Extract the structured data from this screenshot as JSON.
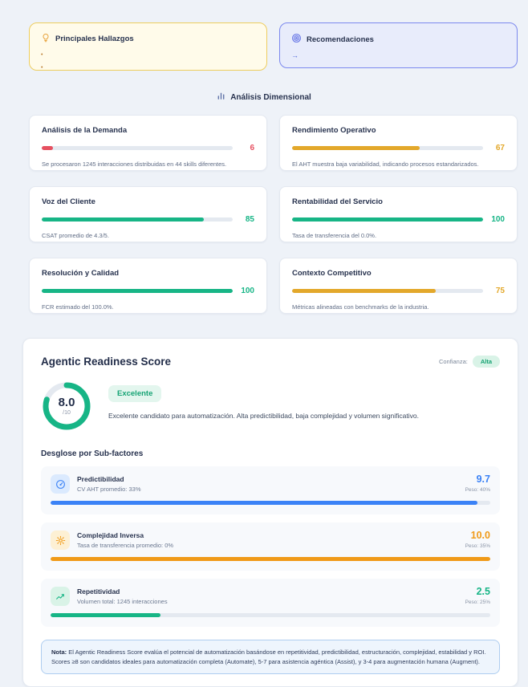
{
  "colors": {
    "page_bg": "#eef2f8",
    "red": "#e65060",
    "gold": "#e3a82b",
    "green": "#17b586",
    "blue": "#3b82f6",
    "orange": "#f09a18",
    "findings_border": "#edcd5f",
    "reco_border": "#7b88ee"
  },
  "findings": {
    "icon": "lightbulb-icon",
    "title": "Principales Hallazgos",
    "items": [
      "",
      ""
    ]
  },
  "recommendations": {
    "icon": "target-icon",
    "title": "Recomendaciones",
    "items": [
      "→"
    ]
  },
  "dimensional": {
    "icon": "bar-chart-icon",
    "title": "Análisis Dimensional",
    "cards": [
      {
        "title": "Análisis de la Demanda",
        "value": 6,
        "color": "#e65060",
        "desc": "Se procesaron 1245 interacciones distribuidas en 44 skills diferentes."
      },
      {
        "title": "Rendimiento Operativo",
        "value": 67,
        "color": "#e3a82b",
        "desc": "El AHT muestra baja variabilidad, indicando procesos estandarizados."
      },
      {
        "title": "Voz del Cliente",
        "value": 85,
        "color": "#17b586",
        "desc": "CSAT promedio de 4.3/5."
      },
      {
        "title": "Rentabilidad del Servicio",
        "value": 100,
        "color": "#17b586",
        "desc": "Tasa de transferencia del 0.0%."
      },
      {
        "title": "Resolución y Calidad",
        "value": 100,
        "color": "#17b586",
        "desc": "FCR estimado del 100.0%."
      },
      {
        "title": "Contexto Competitivo",
        "value": 75,
        "color": "#e3a82b",
        "desc": "Métricas alineadas con benchmarks de la industria."
      }
    ]
  },
  "agentic": {
    "title": "Agentic Readiness Score",
    "confidence_label": "Confianza:",
    "confidence_value": "Alta",
    "score": "8.0",
    "score_denominator": "/10",
    "score_percent": 80,
    "badge": "Excelente",
    "description": "Excelente candidato para automatización. Alta predictibilidad, baja complejidad y volumen significativo.",
    "subfactors_title": "Desglose por Sub-factores",
    "subfactors": [
      {
        "icon": "gauge-icon",
        "name": "Predictibilidad",
        "detail": "CV AHT promedio: 33%",
        "value": "9.7",
        "weight": "Peso: 40%",
        "percent": 97,
        "color": "#3b82f6",
        "icon_bg": "#dbeafe"
      },
      {
        "icon": "gear-icon",
        "name": "Complejidad Inversa",
        "detail": "Tasa de transferencia promedio: 0%",
        "value": "10.0",
        "weight": "Peso: 35%",
        "percent": 100,
        "color": "#f09a18",
        "icon_bg": "#fdf0d4"
      },
      {
        "icon": "trend-up-icon",
        "name": "Repetitividad",
        "detail": "Volumen total: 1245 interacciones",
        "value": "2.5",
        "weight": "Peso: 25%",
        "percent": 25,
        "color": "#17b586",
        "icon_bg": "#d9f3e7"
      }
    ],
    "note_label": "Nota:",
    "note_text": " El Agentic Readiness Score evalúa el potencial de automatización basándose en repetitividad, predictibilidad, estructuración, complejidad, estabilidad y ROI. Scores ≥8 son candidatos ideales para automatización completa (Automate), 5-7 para asistencia agéntica (Assist), y 3-4 para augmentación humana (Augment)."
  }
}
